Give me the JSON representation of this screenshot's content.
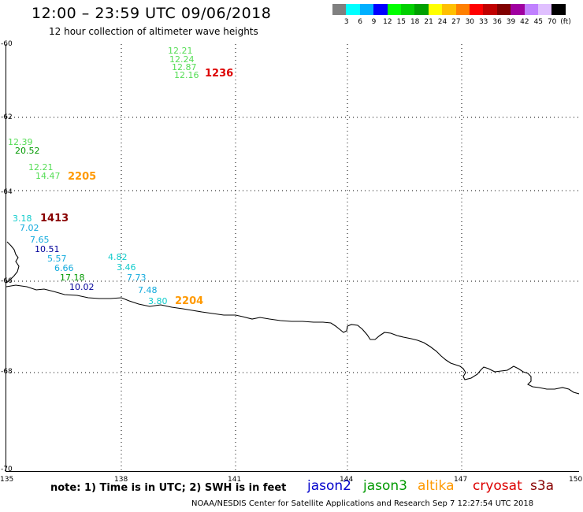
{
  "header": {
    "title": "12:00 – 23:59 UTC 09/06/2018",
    "subtitle": "12 hour collection of altimeter wave heights"
  },
  "legend": {
    "swatches": [
      {
        "color": "#808080",
        "label": ""
      },
      {
        "color": "#00ffff",
        "label": "3"
      },
      {
        "color": "#00b0ff",
        "label": "6"
      },
      {
        "color": "#0000ff",
        "label": "9"
      },
      {
        "color": "#00ff00",
        "label": "12"
      },
      {
        "color": "#00d000",
        "label": "15"
      },
      {
        "color": "#00a000",
        "label": "18"
      },
      {
        "color": "#ffff00",
        "label": "21"
      },
      {
        "color": "#ffc000",
        "label": "24"
      },
      {
        "color": "#ff8000",
        "label": "27"
      },
      {
        "color": "#ff0000",
        "label": "30"
      },
      {
        "color": "#c00000",
        "label": "33"
      },
      {
        "color": "#800000",
        "label": "36"
      },
      {
        "color": "#a000a0",
        "label": "39"
      },
      {
        "color": "#c080ff",
        "label": "42"
      },
      {
        "color": "#e0c0ff",
        "label": "45"
      },
      {
        "color": "#000000",
        "label": "70"
      }
    ],
    "unit": "(ft)"
  },
  "axes": {
    "lat_labels": [
      "-60",
      "-62",
      "-64",
      "-66",
      "-68",
      "-70"
    ],
    "lon_labels": [
      "135",
      "138",
      "141",
      "144",
      "147",
      "150"
    ]
  },
  "observations": [
    {
      "text": "12.21",
      "color": "#55dd55"
    },
    {
      "text": "12.24",
      "color": "#55dd55"
    },
    {
      "text": "12.87",
      "color": "#55dd55"
    },
    {
      "text": "12.16",
      "color": "#55dd55"
    },
    {
      "text": "12.39",
      "color": "#55dd55"
    },
    {
      "text": "20.52",
      "color": "#009900"
    },
    {
      "text": "12.21",
      "color": "#55dd55"
    },
    {
      "text": "14.47",
      "color": "#55dd55"
    },
    {
      "text": "3.18",
      "color": "#11cccc"
    },
    {
      "text": "7.02",
      "color": "#11aadd"
    },
    {
      "text": "7.65",
      "color": "#11aadd"
    },
    {
      "text": "10.51",
      "color": "#000099"
    },
    {
      "text": "5.57",
      "color": "#11aadd"
    },
    {
      "text": "6.66",
      "color": "#11aadd"
    },
    {
      "text": "17.18",
      "color": "#009900"
    },
    {
      "text": "10.02",
      "color": "#000099"
    },
    {
      "text": "4.82",
      "color": "#11cccc"
    },
    {
      "text": "3.46",
      "color": "#11cccc"
    },
    {
      "text": "7.73",
      "color": "#11aadd"
    },
    {
      "text": "7.48",
      "color": "#11aadd"
    },
    {
      "text": "3.80",
      "color": "#11cccc"
    }
  ],
  "times": [
    {
      "text": "1236",
      "color": "#dd0000"
    },
    {
      "text": "2205",
      "color": "#ff9900"
    },
    {
      "text": "1413",
      "color": "#880000"
    },
    {
      "text": "2204",
      "color": "#ff9900"
    }
  ],
  "footer": {
    "note": "note:  1) Time is in UTC;  2) SWH is in feet",
    "satellites": [
      {
        "name": "jason2",
        "color": "#0000cc"
      },
      {
        "name": "jason3",
        "color": "#009900"
      },
      {
        "name": "altika",
        "color": "#ff9900"
      },
      {
        "name": "cryosat",
        "color": "#dd0000"
      },
      {
        "name": "s3a",
        "color": "#880000"
      }
    ],
    "credit": "NOAA/NESDIS Center for Satellite Applications and Research     Sep  7 12:27:54 UTC 2018"
  }
}
